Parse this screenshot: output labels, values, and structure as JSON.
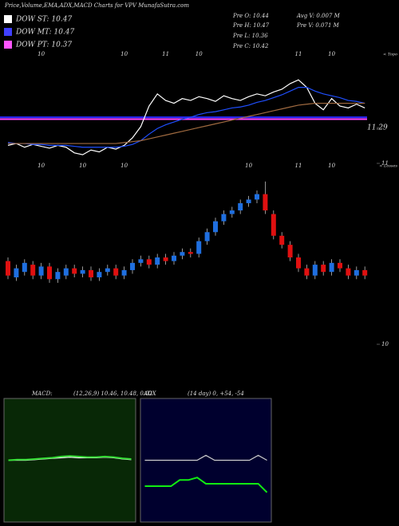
{
  "header": {
    "title": "Price,Volume,EMA,ADX,MACD Charts for VPV MunafaSutra.com",
    "legend": [
      {
        "label": "DOW ST: 10.47",
        "color": "#ffffff"
      },
      {
        "label": "DOW MT: 10.47",
        "color": "#4040ff"
      },
      {
        "label": "DOW PT: 10.37",
        "color": "#ff55ff"
      }
    ],
    "stats": [
      "Pre  O: 10.44",
      "Avg V: 0.007 M",
      "Pre  H: 10.47",
      "Pre  V: 0.071 M",
      "Pre  L: 10.36",
      "Pre  C: 10.42"
    ]
  },
  "chart_data": [
    {
      "type": "line",
      "axis_note": "< Topo",
      "categories": [
        null,
        null,
        null,
        null,
        "10",
        null,
        null,
        null,
        null,
        null,
        null,
        null,
        null,
        null,
        "10",
        null,
        null,
        null,
        null,
        "11",
        null,
        null,
        null,
        "10",
        null,
        null,
        null,
        null,
        null,
        null,
        null,
        null,
        null,
        null,
        null,
        "11",
        null,
        null,
        null,
        "10",
        null,
        null,
        null,
        null
      ],
      "ylim": [
        10.95,
        12.1
      ],
      "yticks": [
        11.29
      ],
      "hlines": [
        {
          "value": 11.4,
          "color": "#2a2aff"
        },
        {
          "value": 11.38,
          "color": "#ff44ff"
        }
      ],
      "series": [
        {
          "color": "#ffffff",
          "values": [
            11.1,
            11.12,
            11.08,
            11.11,
            11.09,
            11.07,
            11.1,
            11.08,
            11.02,
            11.0,
            11.05,
            11.03,
            11.08,
            11.06,
            11.1,
            11.18,
            11.3,
            11.52,
            11.65,
            11.58,
            11.55,
            11.6,
            11.58,
            11.62,
            11.6,
            11.57,
            11.63,
            11.6,
            11.58,
            11.62,
            11.65,
            11.63,
            11.67,
            11.7,
            11.76,
            11.8,
            11.72,
            11.55,
            11.48,
            11.6,
            11.52,
            11.5,
            11.54,
            11.5
          ]
        },
        {
          "color": "#1f4fff",
          "values": [
            11.13,
            11.12,
            11.12,
            11.11,
            11.11,
            11.1,
            11.1,
            11.1,
            11.09,
            11.08,
            11.08,
            11.08,
            11.08,
            11.08,
            11.09,
            11.11,
            11.15,
            11.22,
            11.28,
            11.32,
            11.35,
            11.38,
            11.4,
            11.43,
            11.45,
            11.46,
            11.48,
            11.5,
            11.51,
            11.53,
            11.56,
            11.58,
            11.61,
            11.64,
            11.68,
            11.72,
            11.72,
            11.68,
            11.65,
            11.63,
            11.61,
            11.58,
            11.57,
            11.55
          ]
        },
        {
          "color": "#a06a40",
          "values": [
            11.12,
            11.12,
            11.12,
            11.12,
            11.12,
            11.12,
            11.12,
            11.12,
            11.12,
            11.12,
            11.12,
            11.12,
            11.12,
            11.12,
            11.13,
            11.14,
            11.15,
            11.17,
            11.19,
            11.21,
            11.23,
            11.25,
            11.27,
            11.29,
            11.31,
            11.33,
            11.35,
            11.37,
            11.39,
            11.41,
            11.43,
            11.45,
            11.47,
            11.49,
            11.51,
            11.53,
            11.54,
            11.55,
            11.55,
            11.55,
            11.55,
            11.55,
            11.55,
            11.55
          ]
        }
      ]
    },
    {
      "type": "candlestick",
      "axis_note": "< Losses",
      "up_color": "#1f6fe0",
      "down_color": "#e01010",
      "categories": [
        null,
        null,
        null,
        null,
        "10",
        null,
        null,
        null,
        null,
        "10",
        null,
        null,
        null,
        null,
        "10",
        null,
        null,
        null,
        null,
        null,
        null,
        null,
        null,
        null,
        null,
        null,
        null,
        null,
        null,
        "10",
        null,
        null,
        null,
        null,
        null,
        "11",
        null,
        null,
        null,
        "10",
        null,
        null,
        null,
        null
      ],
      "ylim": [
        10,
        11
      ],
      "yticks": [
        10,
        11
      ],
      "open": [
        10.46,
        10.37,
        10.4,
        10.44,
        10.38,
        10.43,
        10.36,
        10.38,
        10.42,
        10.39,
        10.41,
        10.37,
        10.4,
        10.42,
        10.38,
        10.41,
        10.45,
        10.47,
        10.44,
        10.48,
        10.46,
        10.49,
        10.51,
        10.5,
        10.57,
        10.62,
        10.68,
        10.72,
        10.74,
        10.78,
        10.8,
        10.83,
        10.72,
        10.6,
        10.55,
        10.48,
        10.42,
        10.38,
        10.44,
        10.4,
        10.45,
        10.42,
        10.38,
        10.41
      ],
      "high": [
        10.48,
        10.44,
        10.47,
        10.46,
        10.45,
        10.45,
        10.42,
        10.44,
        10.44,
        10.43,
        10.43,
        10.42,
        10.44,
        10.44,
        10.43,
        10.47,
        10.49,
        10.49,
        10.5,
        10.5,
        10.51,
        10.53,
        10.53,
        10.59,
        10.64,
        10.7,
        10.74,
        10.76,
        10.8,
        10.82,
        10.85,
        10.9,
        10.74,
        10.62,
        10.57,
        10.5,
        10.44,
        10.46,
        10.46,
        10.47,
        10.47,
        10.44,
        10.43,
        10.43
      ],
      "low": [
        10.36,
        10.35,
        10.38,
        10.36,
        10.36,
        10.34,
        10.34,
        10.36,
        10.37,
        10.37,
        10.35,
        10.35,
        10.38,
        10.36,
        10.36,
        10.39,
        10.43,
        10.42,
        10.42,
        10.44,
        10.44,
        10.47,
        10.48,
        10.48,
        10.55,
        10.6,
        10.66,
        10.7,
        10.72,
        10.76,
        10.78,
        10.72,
        10.58,
        10.53,
        10.46,
        10.4,
        10.36,
        10.36,
        10.38,
        10.38,
        10.4,
        10.36,
        10.36,
        10.36
      ],
      "close": [
        10.38,
        10.42,
        10.45,
        10.38,
        10.43,
        10.36,
        10.4,
        10.42,
        10.39,
        10.41,
        10.37,
        10.4,
        10.42,
        10.38,
        10.41,
        10.45,
        10.47,
        10.44,
        10.48,
        10.46,
        10.49,
        10.51,
        10.5,
        10.57,
        10.62,
        10.68,
        10.72,
        10.74,
        10.78,
        10.8,
        10.83,
        10.74,
        10.6,
        10.55,
        10.48,
        10.42,
        10.38,
        10.44,
        10.4,
        10.45,
        10.42,
        10.38,
        10.41,
        10.38
      ]
    },
    {
      "type": "line",
      "title": "MACD:",
      "params": "(12,26,9) 10.46, 10.48, 0.02",
      "categories": [
        null,
        null,
        null,
        null,
        null,
        null,
        null,
        null,
        null,
        null,
        null,
        null,
        null,
        null,
        null
      ],
      "ylim": [
        -1,
        1
      ],
      "series": [
        {
          "color": "#ffffff",
          "values": [
            0.0,
            0.0,
            0.0,
            0.01,
            0.02,
            0.03,
            0.04,
            0.05,
            0.04,
            0.04,
            0.04,
            0.05,
            0.04,
            0.02,
            0.01
          ]
        },
        {
          "color": "#33dd33",
          "values": [
            0.0,
            0.01,
            0.01,
            0.02,
            0.03,
            0.04,
            0.06,
            0.07,
            0.06,
            0.05,
            0.05,
            0.06,
            0.05,
            0.03,
            0.02
          ]
        }
      ]
    },
    {
      "type": "line",
      "title": "ADX",
      "params": "(14 day) 0, +54, -54",
      "categories": [
        null,
        null,
        null,
        null,
        null,
        null,
        null,
        null,
        null,
        null,
        null,
        null,
        null,
        null,
        null
      ],
      "ylim": [
        0,
        100
      ],
      "series": [
        {
          "color": "#cccccc",
          "values": [
            50,
            50,
            50,
            50,
            50,
            50,
            50,
            54,
            50,
            50,
            50,
            50,
            50,
            54,
            50
          ]
        },
        {
          "color": "#11ee11",
          "values": [
            29,
            29,
            29,
            29,
            34,
            34,
            36,
            31,
            31,
            31,
            31,
            31,
            31,
            31,
            24
          ]
        }
      ]
    }
  ]
}
